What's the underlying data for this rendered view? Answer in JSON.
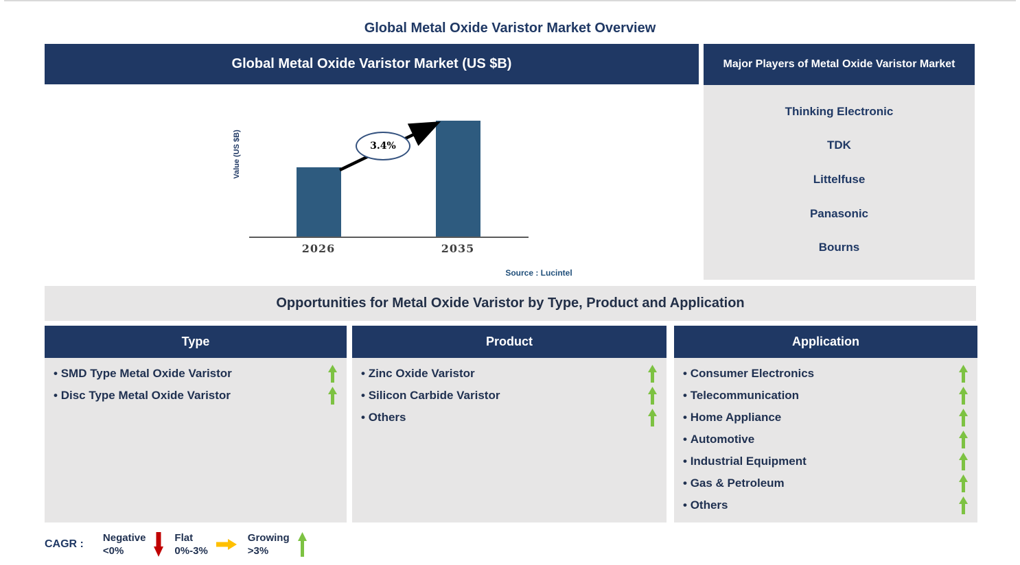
{
  "page": {
    "title": "Global Metal Oxide Varistor Market Overview"
  },
  "chart_panel": {
    "header": "Global Metal Oxide Varistor Market (US $B)",
    "source": "Source : Lucintel"
  },
  "chart_data": {
    "type": "bar",
    "title": "Global Metal Oxide Varistor Market (US $B)",
    "categories": [
      "2026",
      "2035"
    ],
    "values_relative": [
      0.6,
      1.0
    ],
    "value_labels_shown": false,
    "ylabel": "Value (US $B)",
    "xlabel": "",
    "cagr_label": "3.4%",
    "annotation": "CAGR arrow from top of 2026 bar to top of 2035 bar",
    "bar_color": "#2e5b7f",
    "grid": false,
    "legend": false
  },
  "players_panel": {
    "header": "Major Players of Metal Oxide Varistor Market",
    "players": [
      "Thinking Electronic",
      "TDK",
      "Littelfuse",
      "Panasonic",
      "Bourns"
    ]
  },
  "opportunities": {
    "banner": "Opportunities for Metal Oxide Varistor by Type, Product and Application",
    "trend_color": "#7dc242",
    "columns": [
      {
        "header": "Type",
        "items": [
          "SMD Type Metal Oxide Varistor",
          "Disc Type Metal Oxide Varistor"
        ]
      },
      {
        "header": "Product",
        "items": [
          "Zinc Oxide Varistor",
          "Silicon Carbide Varistor",
          "Others"
        ]
      },
      {
        "header": "Application",
        "items": [
          "Consumer Electronics",
          "Telecommunication",
          "Home Appliance",
          "Automotive",
          "Industrial Equipment",
          "Gas & Petroleum",
          "Others"
        ]
      }
    ]
  },
  "legend": {
    "label": "CAGR :",
    "entries": [
      {
        "name": "Negative",
        "range": "<0%",
        "arrow": "down-arrow",
        "color": "#c00000"
      },
      {
        "name": "Flat",
        "range": "0%-3%",
        "arrow": "right-arrow",
        "color": "#ffc000"
      },
      {
        "name": "Growing",
        "range": ">3%",
        "arrow": "up-arrow",
        "color": "#7dc242"
      }
    ]
  },
  "colors": {
    "navy_header": "#1f3864",
    "panel_gray": "#e7e6e6",
    "bar_blue": "#2e5b7f",
    "source_blue": "#1f4e79",
    "growing_green": "#7dc242",
    "negative_red": "#c00000",
    "flat_orange": "#ffc000"
  }
}
